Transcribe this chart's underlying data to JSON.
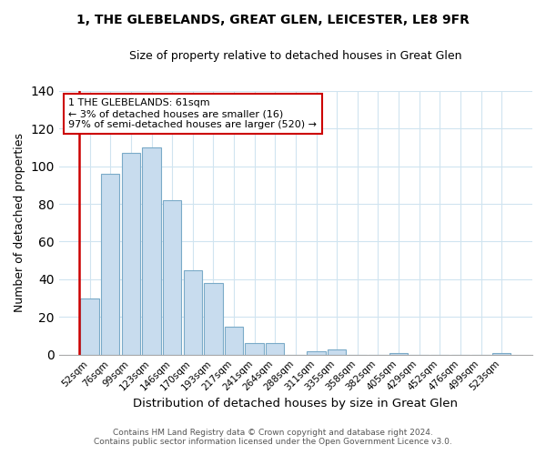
{
  "title": "1, THE GLEBELANDS, GREAT GLEN, LEICESTER, LE8 9FR",
  "subtitle": "Size of property relative to detached houses in Great Glen",
  "xlabel": "Distribution of detached houses by size in Great Glen",
  "ylabel": "Number of detached properties",
  "bar_labels": [
    "52sqm",
    "76sqm",
    "99sqm",
    "123sqm",
    "146sqm",
    "170sqm",
    "193sqm",
    "217sqm",
    "241sqm",
    "264sqm",
    "288sqm",
    "311sqm",
    "335sqm",
    "358sqm",
    "382sqm",
    "405sqm",
    "429sqm",
    "452sqm",
    "476sqm",
    "499sqm",
    "523sqm"
  ],
  "bar_values": [
    30,
    96,
    107,
    110,
    82,
    45,
    38,
    15,
    6,
    6,
    0,
    2,
    3,
    0,
    0,
    1,
    0,
    0,
    0,
    0,
    1
  ],
  "bar_color": "#c8dcee",
  "bar_edge_color": "#7aaac8",
  "annotation_line1": "1 THE GLEBELANDS: 61sqm",
  "annotation_line2": "← 3% of detached houses are smaller (16)",
  "annotation_line3": "97% of semi-detached houses are larger (520) →",
  "annotation_box_edge": "#cc0000",
  "ylim": [
    0,
    140
  ],
  "yticks": [
    0,
    20,
    40,
    60,
    80,
    100,
    120,
    140
  ],
  "footer1": "Contains HM Land Registry data © Crown copyright and database right 2024.",
  "footer2": "Contains public sector information licensed under the Open Government Licence v3.0.",
  "red_line_x": 0,
  "title_fontsize": 10,
  "subtitle_fontsize": 9
}
